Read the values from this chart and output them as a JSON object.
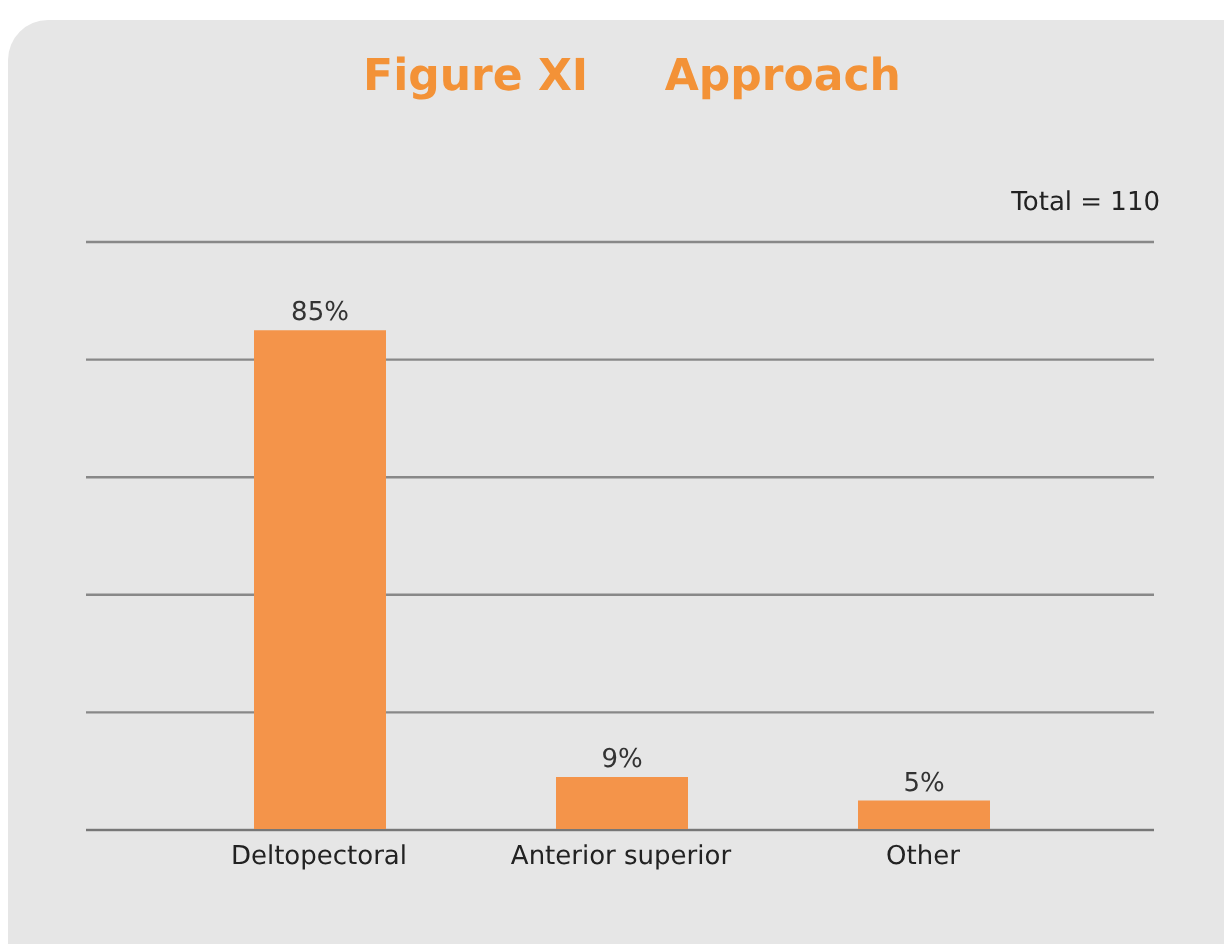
{
  "chart_data": {
    "type": "bar",
    "title": "Figure XI     Approach",
    "annotations": [
      "Total = 110"
    ],
    "categories": [
      "Deltopectoral",
      "Anterior superior",
      "Other"
    ],
    "values": [
      85,
      9,
      5
    ],
    "value_labels": [
      "85%",
      "9%",
      "5%"
    ],
    "color": "#f4944a",
    "tick_labels": "x",
    "grid": "y"
  }
}
